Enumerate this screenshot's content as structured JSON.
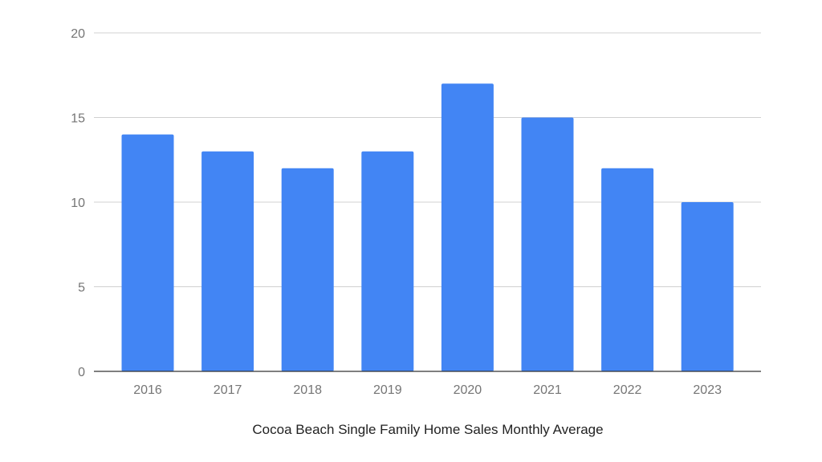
{
  "chart_data": {
    "type": "bar",
    "categories": [
      "2016",
      "2017",
      "2018",
      "2019",
      "2020",
      "2021",
      "2022",
      "2023"
    ],
    "values": [
      14,
      13,
      12,
      13,
      17,
      15,
      12,
      10
    ],
    "title": "",
    "xlabel": "Cocoa Beach Single Family Home Sales Monthly Average",
    "ylabel": "",
    "ylim": [
      0,
      20
    ],
    "yticks": [
      0,
      5,
      10,
      15,
      20
    ],
    "grid": true,
    "legend": "none",
    "bar_color": "#4285f4"
  }
}
